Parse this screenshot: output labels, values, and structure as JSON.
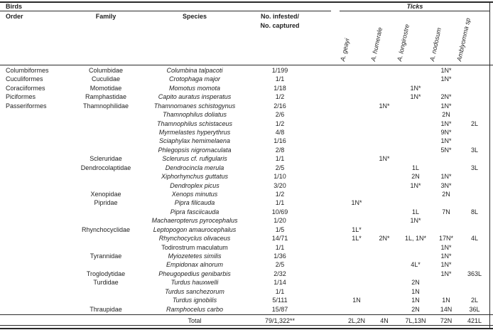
{
  "table": {
    "left_group_header": "Birds",
    "right_group_header": "Ticks",
    "columns": [
      "Order",
      "Family",
      "Species"
    ],
    "infested_header": {
      "line1": "No. infested/",
      "line2": "No. captured"
    },
    "tick_columns": [
      "A. geayi",
      "A. humerale",
      "A. longirostre",
      "A. nodosum",
      "Amblyomma sp"
    ],
    "rows": [
      {
        "order": "Columbiformes",
        "family": "Columbidae",
        "species": "Columbina talpacoti",
        "infested": "1/199",
        "ticks": [
          "",
          "",
          "",
          "1N*",
          ""
        ]
      },
      {
        "order": "Cuculiformes",
        "family": "Cuculidae",
        "species": "Crotophaga major",
        "infested": "1/1",
        "ticks": [
          "",
          "",
          "",
          "1N*",
          ""
        ]
      },
      {
        "order": "Coraciiformes",
        "family": "Momotidae",
        "species": "Momotus momota",
        "infested": "1/18",
        "ticks": [
          "",
          "",
          "1N*",
          "",
          ""
        ]
      },
      {
        "order": "Piciformes",
        "family": "Ramphastidae",
        "species": "Capito auratus insperatus",
        "infested": "1/2",
        "ticks": [
          "",
          "",
          "1N*",
          "2N*",
          ""
        ]
      },
      {
        "order": "Passeriformes",
        "family": "Thamnophilidae",
        "species": "Thamnomanes schistogynus",
        "infested": "2/16",
        "ticks": [
          "",
          "1N*",
          "",
          "1N*",
          ""
        ]
      },
      {
        "order": "",
        "family": "",
        "species": "Thamnophilus doliatus",
        "infested": "2/6",
        "ticks": [
          "",
          "",
          "",
          "2N",
          ""
        ]
      },
      {
        "order": "",
        "family": "",
        "species": "Thamnophilus schistaceus",
        "infested": "1/2",
        "ticks": [
          "",
          "",
          "",
          "1N*",
          "2L"
        ]
      },
      {
        "order": "",
        "family": "",
        "species": "Myrmelastes hyperythrus",
        "infested": "4/8",
        "ticks": [
          "",
          "",
          "",
          "9N*",
          ""
        ]
      },
      {
        "order": "",
        "family": "",
        "species": "Sciaphylax hemimelaena",
        "infested": "1/16",
        "ticks": [
          "",
          "",
          "",
          "1N*",
          ""
        ]
      },
      {
        "order": "",
        "family": "",
        "species": "Phlegopsis nigromaculata",
        "infested": "2/8",
        "ticks": [
          "",
          "",
          "",
          "5N*",
          "3L"
        ]
      },
      {
        "order": "",
        "family": "Scleruridae",
        "species": "Sclerurus cf. rufigularis",
        "infested": "1/1",
        "ticks": [
          "",
          "1N*",
          "",
          "",
          ""
        ]
      },
      {
        "order": "",
        "family": "Dendrocolaptidae",
        "species": "Dendrocincla merula",
        "infested": "2/5",
        "ticks": [
          "",
          "",
          "1L",
          "",
          "3L"
        ]
      },
      {
        "order": "",
        "family": "",
        "species": "Xiphorhynchus guttatus",
        "infested": "1/10",
        "ticks": [
          "",
          "",
          "2N",
          "1N*",
          ""
        ]
      },
      {
        "order": "",
        "family": "",
        "species": "Dendroplex picus",
        "infested": "3/20",
        "ticks": [
          "",
          "",
          "1N*",
          "3N*",
          ""
        ]
      },
      {
        "order": "",
        "family": "Xenopidae",
        "species": "Xenops minutus",
        "infested": "1/2",
        "ticks": [
          "",
          "",
          "",
          "2N",
          ""
        ]
      },
      {
        "order": "",
        "family": "Pipridae",
        "species": "Pipra filicauda",
        "infested": "1/1",
        "ticks": [
          "1N*",
          "",
          "",
          "",
          ""
        ]
      },
      {
        "order": "",
        "family": "",
        "species": "Pipra fasciicauda",
        "infested": "10/69",
        "ticks": [
          "",
          "",
          "1L",
          "7N",
          "8L"
        ]
      },
      {
        "order": "",
        "family": "",
        "species": "Machaeropterus pyrocephalus",
        "infested": "1/20",
        "ticks": [
          "",
          "",
          "1N*",
          "",
          ""
        ]
      },
      {
        "order": "",
        "family": "Rhynchocyclidae",
        "species": "Leptopogon amaurocephalus",
        "infested": "1/5",
        "ticks": [
          "1L*",
          "",
          "",
          "",
          ""
        ]
      },
      {
        "order": "",
        "family": "",
        "species": "Rhynchocyclus olivaceus",
        "infested": "14/71",
        "ticks": [
          "1L*",
          "2N*",
          "1L, 1N*",
          "17N*",
          "4L"
        ]
      },
      {
        "order": "",
        "family": "",
        "species": "Todirostrum maculatum",
        "species_upright": true,
        "infested": "1/1",
        "ticks": [
          "",
          "",
          "",
          "1N*",
          ""
        ]
      },
      {
        "order": "",
        "family": "Tyrannidae",
        "species": "Myiozetetes similis",
        "infested": "1/36",
        "ticks": [
          "",
          "",
          "",
          "1N*",
          ""
        ]
      },
      {
        "order": "",
        "family": "",
        "species": "Empidonax alnorum",
        "infested": "2/5",
        "ticks": [
          "",
          "",
          "4L*",
          "1N*",
          ""
        ]
      },
      {
        "order": "",
        "family": "Troglodytidae",
        "species": "Pheugopedius genibarbis",
        "infested": "2/32",
        "ticks": [
          "",
          "",
          "",
          "1N*",
          "363L"
        ]
      },
      {
        "order": "",
        "family": "Turdidae",
        "species": "Turdus hauxwelli",
        "infested": "1/14",
        "ticks": [
          "",
          "",
          "2N",
          "",
          ""
        ]
      },
      {
        "order": "",
        "family": "",
        "species": "Turdus sanchezorum",
        "infested": "1/1",
        "ticks": [
          "",
          "",
          "1N",
          "",
          ""
        ]
      },
      {
        "order": "",
        "family": "",
        "species": "Turdus ignobilis",
        "infested": "5/111",
        "ticks": [
          "1N",
          "",
          "1N",
          "1N",
          "2L"
        ]
      },
      {
        "order": "",
        "family": "Thraupidae",
        "species": "Ramphocelus carbo",
        "infested": "15/87",
        "ticks": [
          "",
          "",
          "2N",
          "14N",
          "36L"
        ]
      }
    ],
    "total": {
      "label": "Total",
      "infested": "79/1,322**",
      "ticks": [
        "2L,2N",
        "4N",
        "7L,13N",
        "72N",
        "421L"
      ]
    }
  }
}
